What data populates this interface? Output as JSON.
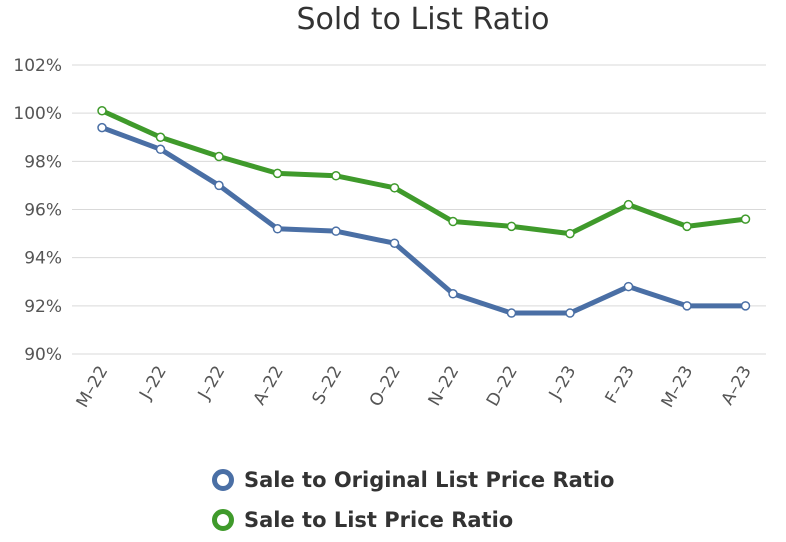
{
  "chart_data": {
    "type": "line",
    "title": "Sold to List Ratio",
    "categories": [
      "M-22",
      "J-22",
      "J-22",
      "A-22",
      "S-22",
      "O-22",
      "N-22",
      "D-22",
      "J-23",
      "F-23",
      "M-23",
      "A-23"
    ],
    "y_ticks": [
      "90%",
      "92%",
      "94%",
      "96%",
      "98%",
      "100%",
      "102%"
    ],
    "ylim": [
      90,
      102
    ],
    "grid": true,
    "legend_position": "bottom",
    "series": [
      {
        "name": "Sale to Original List Price Ratio",
        "color": "#4a6fa5",
        "values": [
          99.4,
          98.5,
          97.0,
          95.2,
          95.1,
          94.6,
          92.5,
          91.7,
          91.7,
          92.8,
          92.0,
          92.0
        ]
      },
      {
        "name": "Sale to List Price Ratio",
        "color": "#3f9a2b",
        "values": [
          100.1,
          99.0,
          98.2,
          97.5,
          97.4,
          96.9,
          95.5,
          95.3,
          95.0,
          96.2,
          95.3,
          95.6
        ]
      }
    ]
  }
}
